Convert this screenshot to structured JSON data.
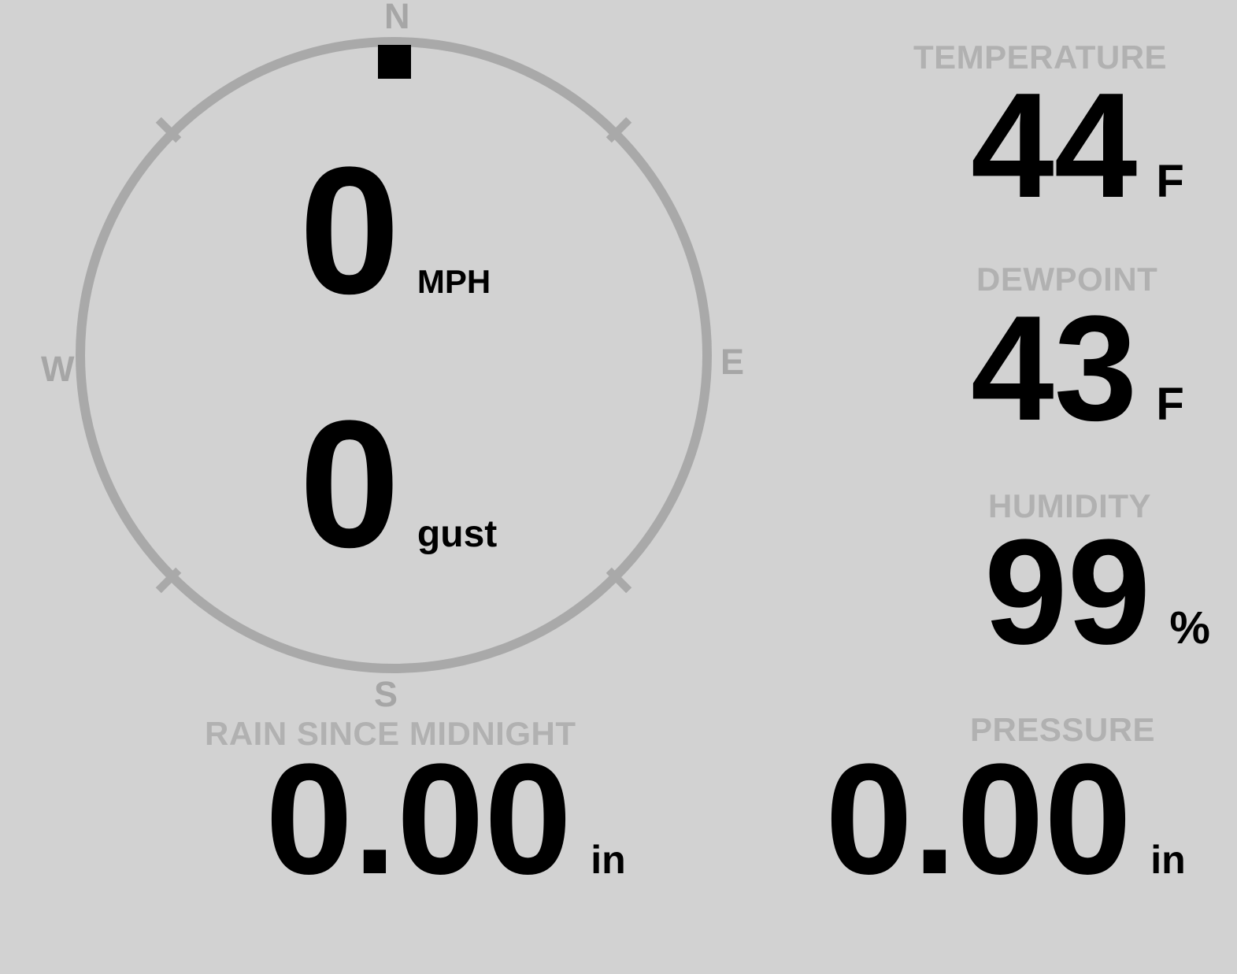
{
  "theme": {
    "background": "#d2d2d2",
    "value_color": "#000000",
    "label_color": "#b1b1b1",
    "compass_color": "#a9a9a9"
  },
  "wind": {
    "direction": "N",
    "speed": {
      "value": "0",
      "unit": "MPH"
    },
    "gust": {
      "value": "0",
      "unit": "gust"
    },
    "compass_points": {
      "north": "N",
      "east": "E",
      "south": "S",
      "west": "W"
    }
  },
  "stats": {
    "temperature": {
      "label": "TEMPERATURE",
      "value": "44",
      "unit": "F"
    },
    "dewpoint": {
      "label": "DEWPOINT",
      "value": "43",
      "unit": "F"
    },
    "humidity": {
      "label": "HUMIDITY",
      "value": "99",
      "unit": "%"
    },
    "rain_since_midnight": {
      "label": "RAIN SINCE MIDNIGHT",
      "value": "0.00",
      "unit": "in"
    },
    "pressure": {
      "label": "PRESSURE",
      "value": "0.00",
      "unit": "in"
    }
  }
}
